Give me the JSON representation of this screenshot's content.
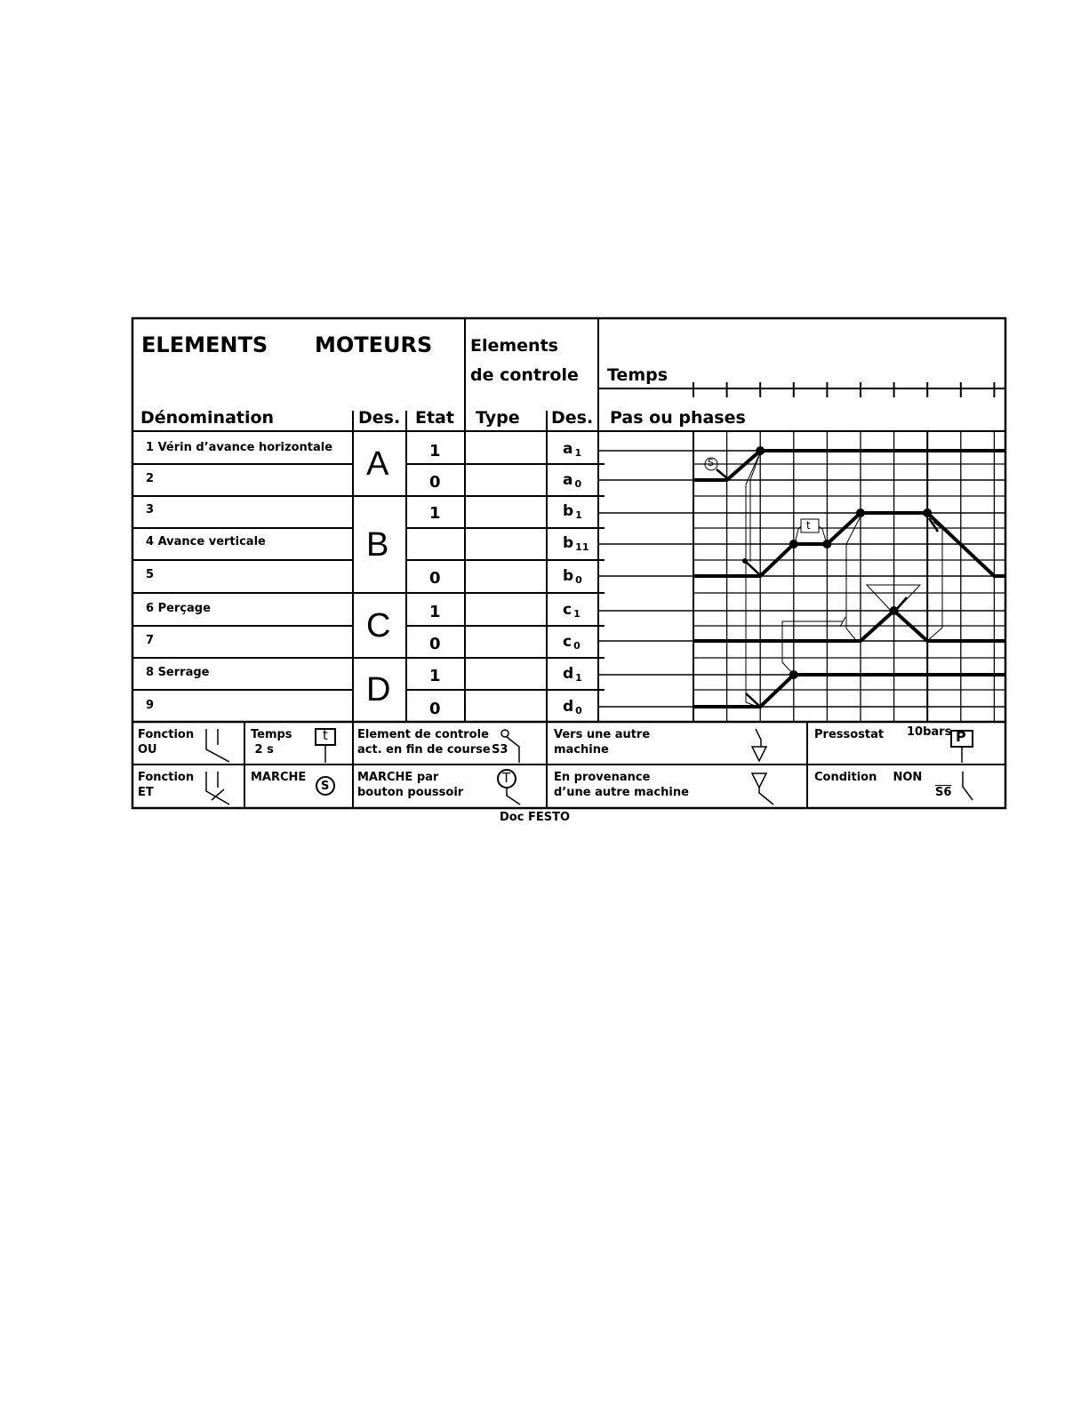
{
  "header": {
    "title_left": "ELEMENTS",
    "title_right": "MOTEURS",
    "control_title_1": "Elements",
    "control_title_2": "de controle",
    "time_label": "Temps",
    "col_denomination": "Dénomination",
    "col_des": "Des.",
    "col_etat": "Etat",
    "col_type": "Type",
    "col_des2": "Des.",
    "col_phases": "Pas ou phases"
  },
  "rows": [
    {
      "label": "1 Vérin d’avance horizontale"
    },
    {
      "label": "2"
    },
    {
      "label": "3"
    },
    {
      "label": "4  Avance verticale"
    },
    {
      "label": "5"
    },
    {
      "label": "6   Perçage"
    },
    {
      "label": "7"
    },
    {
      "label": "8   Serrage"
    },
    {
      "label": "9"
    }
  ],
  "actuators": [
    "A",
    "B",
    "C",
    "D"
  ],
  "etat": [
    "1",
    "0",
    "1",
    "",
    "0",
    "1",
    "0",
    "1",
    "0"
  ],
  "sensors": [
    {
      "base": "a",
      "sub": "1"
    },
    {
      "base": "a",
      "sub": "0"
    },
    {
      "base": "b",
      "sub": "1"
    },
    {
      "base": "b",
      "sub": "11"
    },
    {
      "base": "b",
      "sub": "0"
    },
    {
      "base": "c",
      "sub": "1"
    },
    {
      "base": "c",
      "sub": "0"
    },
    {
      "base": "d",
      "sub": "1"
    },
    {
      "base": "d",
      "sub": "0"
    }
  ],
  "waveforms": [
    {
      "actuator": "A",
      "points": [
        [
          0,
          "a0"
        ],
        [
          1,
          "a0"
        ],
        [
          2,
          "a1"
        ],
        [
          9.35,
          "a1"
        ]
      ],
      "dots": [
        2
      ]
    },
    {
      "actuator": "B",
      "points": [
        [
          0,
          "b0"
        ],
        [
          2,
          "b0"
        ],
        [
          3,
          "b11"
        ],
        [
          4,
          "b11"
        ],
        [
          5,
          "b1"
        ],
        [
          7,
          "b1"
        ],
        [
          9,
          "b0"
        ],
        [
          9.35,
          "b0"
        ]
      ],
      "dots": [
        3,
        4,
        5,
        7
      ]
    },
    {
      "actuator": "C",
      "points": [
        [
          0,
          "c0"
        ],
        [
          5,
          "c0"
        ],
        [
          6,
          "c1"
        ],
        [
          7,
          "c0"
        ],
        [
          9.35,
          "c0"
        ]
      ],
      "dots": [
        6
      ]
    },
    {
      "actuator": "D",
      "points": [
        [
          0,
          "d0"
        ],
        [
          2,
          "d0"
        ],
        [
          3,
          "d1"
        ],
        [
          9.35,
          "d1"
        ]
      ],
      "dots": [
        3
      ]
    }
  ],
  "diagram_marks": {
    "start_symbol": "S",
    "timer_symbol": "t"
  },
  "legend": [
    {
      "text": "Fonction\nOU",
      "icon": "or-function-icon"
    },
    {
      "text": "Temps\n 2 s",
      "icon": "timer-icon",
      "symbol": "t"
    },
    {
      "text": "Element de controle\nact. en fin de course",
      "extra": "S3",
      "icon": "limit-switch-icon"
    },
    {
      "text": "Vers une autre\nmachine",
      "icon": "to-other-machine-icon"
    },
    {
      "text": "Pressostat",
      "extra": "10bars",
      "symbol": "P",
      "icon": "pressure-switch-icon"
    },
    {
      "text": "Fonction\nET",
      "icon": "and-function-icon"
    },
    {
      "text": "MARCHE",
      "symbol": "S",
      "icon": "start-icon"
    },
    {
      "text": "MARCHE par\nbouton poussoir",
      "symbol": "T",
      "icon": "push-button-icon"
    },
    {
      "text": "En provenance\nd’une autre machine",
      "icon": "from-other-machine-icon"
    },
    {
      "text": "Condition    NON",
      "extra": "S6",
      "icon": "not-condition-icon"
    }
  ],
  "footer": {
    "source": "Doc  FESTO"
  }
}
